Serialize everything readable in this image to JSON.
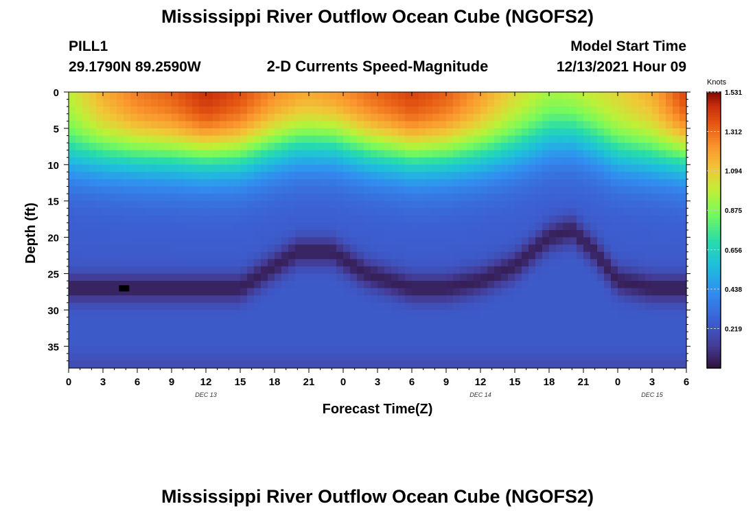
{
  "chart_data": {
    "type": "heatmap",
    "title": "Mississippi River Outflow Ocean Cube (NGOFS2)",
    "subtitle": "2-D Currents Speed-Magnitude",
    "station": "PILL1",
    "location": "29.1790N  89.2590W",
    "model_start_label": "Model Start Time",
    "model_start_value": "12/13/2021 Hour 09",
    "xlabel": "Forecast Time(Z)",
    "ylabel": "Depth (ft)",
    "x_ticks": [
      "0",
      "3",
      "6",
      "9",
      "12",
      "15",
      "18",
      "21",
      "0",
      "3",
      "6",
      "9",
      "12",
      "15",
      "18",
      "21",
      "0",
      "3",
      "6"
    ],
    "x_range": [
      0,
      54
    ],
    "y_ticks": [
      "0",
      "5",
      "10",
      "15",
      "20",
      "25",
      "30",
      "35"
    ],
    "y_range": [
      0,
      38
    ],
    "date_labels": [
      {
        "label": "DEC 13",
        "hour": 12
      },
      {
        "label": "DEC 14",
        "hour": 36
      },
      {
        "label": "DEC 15",
        "hour": 51
      }
    ],
    "colorbar": {
      "unit": "Knots",
      "min": 0.0,
      "max": 1.531,
      "ticks": [
        "1.531",
        "1.312",
        "1.094",
        "0.875",
        "0.656",
        "0.438",
        "0.219"
      ],
      "tick_values": [
        1.531,
        1.312,
        1.094,
        0.875,
        0.656,
        0.438,
        0.219
      ]
    },
    "surface_speed_by_hour": [
      [
        0,
        1.0
      ],
      [
        3,
        1.2
      ],
      [
        6,
        1.32
      ],
      [
        9,
        1.38
      ],
      [
        12,
        1.5
      ],
      [
        15,
        1.42
      ],
      [
        18,
        1.3
      ],
      [
        21,
        1.25
      ],
      [
        24,
        1.3
      ],
      [
        27,
        1.38
      ],
      [
        30,
        1.45
      ],
      [
        33,
        1.38
      ],
      [
        36,
        1.25
      ],
      [
        39,
        1.1
      ],
      [
        42,
        1.0
      ],
      [
        45,
        1.05
      ],
      [
        48,
        1.1
      ],
      [
        51,
        1.2
      ],
      [
        54,
        1.45
      ]
    ],
    "min_speed_layer_depth_ft_by_hour": [
      [
        0,
        27
      ],
      [
        6,
        27
      ],
      [
        12,
        27
      ],
      [
        15,
        27
      ],
      [
        20,
        22
      ],
      [
        23,
        22
      ],
      [
        26,
        25
      ],
      [
        30,
        27
      ],
      [
        33,
        27
      ],
      [
        36,
        26
      ],
      [
        39,
        24
      ],
      [
        42,
        20
      ],
      [
        44,
        19
      ],
      [
        46,
        22
      ],
      [
        48,
        26
      ],
      [
        51,
        27
      ],
      [
        54,
        27
      ]
    ],
    "footer_title": "Mississippi River Outflow Ocean Cube (NGOFS2)"
  }
}
